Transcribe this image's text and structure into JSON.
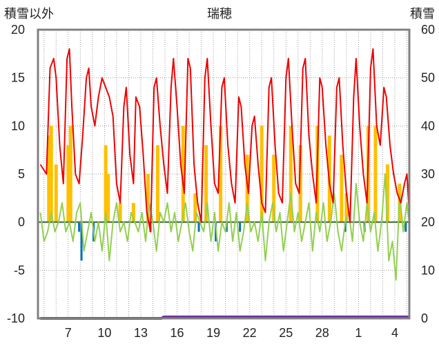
{
  "chart_data": {
    "type": "line",
    "title": "瑞穂",
    "y_left_label": "積雪以外",
    "y_right_label": "積雪",
    "y_left_ticks": [
      "20",
      "15",
      "10",
      "5",
      "0",
      "-5",
      "-10"
    ],
    "y_right_ticks": [
      "60",
      "50",
      "40",
      "30",
      "20",
      "10",
      "0"
    ],
    "ylim_left": [
      -10,
      20
    ],
    "ylim_right": [
      0,
      60
    ],
    "x_tick_labels": [
      "7",
      "10",
      "13",
      "16",
      "19",
      "22",
      "25",
      "28",
      "1",
      "4"
    ],
    "x_tick_days": [
      3,
      6,
      9,
      12,
      15,
      18,
      21,
      24,
      27,
      30
    ],
    "x_range_days": [
      0.5,
      31.2
    ],
    "grid": true,
    "colors": {
      "temperature": "#ee0000",
      "sunshine": "#ffc000",
      "temp_diff": "#92d050",
      "precip": "#0070c0",
      "snow": "#7030a0",
      "zero_line": "#5a7a5a",
      "frame": "#808080"
    },
    "series": [
      {
        "key": "temperature",
        "axis": "left",
        "points": [
          [
            0.7,
            6
          ],
          [
            1.2,
            5
          ],
          [
            1.5,
            16
          ],
          [
            1.8,
            17
          ],
          [
            2.0,
            15
          ],
          [
            2.3,
            8
          ],
          [
            2.6,
            4
          ],
          [
            2.9,
            17
          ],
          [
            3.1,
            18
          ],
          [
            3.3,
            12
          ],
          [
            3.6,
            5
          ],
          [
            3.9,
            4
          ],
          [
            4.2,
            9
          ],
          [
            4.5,
            15
          ],
          [
            4.7,
            16
          ],
          [
            4.9,
            12
          ],
          [
            5.2,
            10
          ],
          [
            5.5,
            13
          ],
          [
            5.8,
            15
          ],
          [
            6.1,
            14
          ],
          [
            6.4,
            13
          ],
          [
            6.7,
            11
          ],
          [
            7.0,
            4
          ],
          [
            7.3,
            2
          ],
          [
            7.6,
            12
          ],
          [
            7.8,
            14
          ],
          [
            8.1,
            7
          ],
          [
            8.4,
            4
          ],
          [
            8.6,
            13
          ],
          [
            8.9,
            12
          ],
          [
            9.2,
            7
          ],
          [
            9.5,
            1
          ],
          [
            9.8,
            -1
          ],
          [
            10.1,
            14
          ],
          [
            10.3,
            15
          ],
          [
            10.6,
            10
          ],
          [
            10.9,
            6
          ],
          [
            11.2,
            3
          ],
          [
            11.5,
            14
          ],
          [
            11.7,
            17
          ],
          [
            12.0,
            12
          ],
          [
            12.3,
            6
          ],
          [
            12.6,
            3
          ],
          [
            12.9,
            17
          ],
          [
            13.1,
            16
          ],
          [
            13.4,
            6
          ],
          [
            13.7,
            2
          ],
          [
            14.0,
            0
          ],
          [
            14.3,
            15
          ],
          [
            14.5,
            17
          ],
          [
            14.8,
            10
          ],
          [
            15.1,
            4
          ],
          [
            15.4,
            3
          ],
          [
            15.7,
            14
          ],
          [
            15.9,
            15
          ],
          [
            16.2,
            8
          ],
          [
            16.5,
            4
          ],
          [
            16.8,
            2
          ],
          [
            17.1,
            13
          ],
          [
            17.3,
            12
          ],
          [
            17.6,
            6
          ],
          [
            17.9,
            3
          ],
          [
            18.2,
            10
          ],
          [
            18.4,
            11
          ],
          [
            18.7,
            6
          ],
          [
            19.0,
            2
          ],
          [
            19.3,
            1
          ],
          [
            19.6,
            14
          ],
          [
            19.8,
            15
          ],
          [
            20.1,
            8
          ],
          [
            20.4,
            3
          ],
          [
            20.7,
            2
          ],
          [
            21.0,
            15
          ],
          [
            21.2,
            17
          ],
          [
            21.5,
            10
          ],
          [
            21.8,
            4
          ],
          [
            22.1,
            3
          ],
          [
            22.4,
            16
          ],
          [
            22.6,
            17
          ],
          [
            22.9,
            9
          ],
          [
            23.2,
            5
          ],
          [
            23.5,
            2
          ],
          [
            23.8,
            15
          ],
          [
            24.0,
            14
          ],
          [
            24.3,
            8
          ],
          [
            24.6,
            4
          ],
          [
            24.9,
            2
          ],
          [
            25.2,
            14
          ],
          [
            25.4,
            15
          ],
          [
            25.7,
            8
          ],
          [
            26.0,
            3
          ],
          [
            26.3,
            0
          ],
          [
            26.6,
            13
          ],
          [
            26.8,
            17
          ],
          [
            27.1,
            10
          ],
          [
            27.4,
            5
          ],
          [
            27.7,
            2
          ],
          [
            28.0,
            16
          ],
          [
            28.2,
            18
          ],
          [
            28.5,
            10
          ],
          [
            28.8,
            8
          ],
          [
            29.1,
            14
          ],
          [
            29.3,
            13
          ],
          [
            29.6,
            8
          ],
          [
            29.9,
            5
          ],
          [
            30.2,
            3
          ],
          [
            30.5,
            2
          ],
          [
            30.8,
            4
          ],
          [
            31.0,
            5
          ],
          [
            31.2,
            1
          ]
        ]
      },
      {
        "key": "sunshine",
        "axis": "left",
        "bars": [
          [
            1.4,
            9
          ],
          [
            1.6,
            10
          ],
          [
            2.0,
            6
          ],
          [
            3.0,
            8
          ],
          [
            3.2,
            10
          ],
          [
            6.1,
            8
          ],
          [
            6.3,
            5
          ],
          [
            7.3,
            2
          ],
          [
            8.4,
            2
          ],
          [
            9.6,
            5
          ],
          [
            10.4,
            8
          ],
          [
            12.5,
            10
          ],
          [
            13.5,
            3
          ],
          [
            14.4,
            8
          ],
          [
            15.6,
            10
          ],
          [
            17.8,
            7
          ],
          [
            19.0,
            10
          ],
          [
            20.0,
            7
          ],
          [
            21.4,
            10
          ],
          [
            22.2,
            8
          ],
          [
            23.6,
            10
          ],
          [
            24.6,
            9
          ],
          [
            25.6,
            7
          ],
          [
            26.0,
            3
          ],
          [
            27.8,
            10
          ],
          [
            28.4,
            10
          ],
          [
            29.4,
            6
          ],
          [
            30.4,
            4
          ]
        ]
      },
      {
        "key": "temp_diff",
        "axis": "left",
        "points": [
          [
            0.7,
            1
          ],
          [
            1.0,
            -2
          ],
          [
            1.3,
            -1
          ],
          [
            1.6,
            1
          ],
          [
            1.9,
            -1
          ],
          [
            2.2,
            0
          ],
          [
            2.5,
            2
          ],
          [
            2.8,
            -1
          ],
          [
            3.1,
            0
          ],
          [
            3.4,
            -2
          ],
          [
            3.7,
            1
          ],
          [
            4.0,
            2
          ],
          [
            4.3,
            -3
          ],
          [
            4.6,
            -1
          ],
          [
            4.9,
            1
          ],
          [
            5.2,
            -2
          ],
          [
            5.5,
            0
          ],
          [
            5.8,
            -3
          ],
          [
            6.1,
            1
          ],
          [
            6.4,
            -4
          ],
          [
            6.7,
            0
          ],
          [
            7.0,
            2
          ],
          [
            7.3,
            -1
          ],
          [
            7.6,
            0
          ],
          [
            7.9,
            -2
          ],
          [
            8.2,
            1
          ],
          [
            8.5,
            0
          ],
          [
            8.8,
            -1
          ],
          [
            9.1,
            1
          ],
          [
            9.4,
            -2
          ],
          [
            9.7,
            2
          ],
          [
            10.0,
            0
          ],
          [
            10.3,
            -3
          ],
          [
            10.6,
            1
          ],
          [
            10.9,
            0
          ],
          [
            11.2,
            2
          ],
          [
            11.5,
            -1
          ],
          [
            11.8,
            1
          ],
          [
            12.1,
            -2
          ],
          [
            12.4,
            0
          ],
          [
            12.7,
            2
          ],
          [
            13.0,
            -1
          ],
          [
            13.3,
            -3
          ],
          [
            13.6,
            1
          ],
          [
            13.9,
            0
          ],
          [
            14.2,
            -1
          ],
          [
            14.5,
            2
          ],
          [
            14.8,
            -2
          ],
          [
            15.1,
            1
          ],
          [
            15.4,
            -3
          ],
          [
            15.7,
            0
          ],
          [
            16.0,
            -1
          ],
          [
            16.3,
            2
          ],
          [
            16.6,
            -2
          ],
          [
            16.9,
            1
          ],
          [
            17.2,
            -3
          ],
          [
            17.5,
            -1
          ],
          [
            17.8,
            2
          ],
          [
            18.1,
            -1
          ],
          [
            18.4,
            0
          ],
          [
            18.7,
            -2
          ],
          [
            19.0,
            1
          ],
          [
            19.3,
            -4
          ],
          [
            19.6,
            0
          ],
          [
            19.9,
            2
          ],
          [
            20.2,
            -1
          ],
          [
            20.5,
            1
          ],
          [
            20.8,
            -3
          ],
          [
            21.1,
            0
          ],
          [
            21.4,
            3
          ],
          [
            21.7,
            -1
          ],
          [
            22.0,
            1
          ],
          [
            22.3,
            -2
          ],
          [
            22.6,
            0
          ],
          [
            22.9,
            2
          ],
          [
            23.2,
            -3
          ],
          [
            23.5,
            1
          ],
          [
            23.8,
            -1
          ],
          [
            24.1,
            2
          ],
          [
            24.4,
            -2
          ],
          [
            24.7,
            0
          ],
          [
            25.0,
            3
          ],
          [
            25.3,
            -1
          ],
          [
            25.6,
            -3
          ],
          [
            25.9,
            0
          ],
          [
            26.2,
            1
          ],
          [
            26.5,
            -2
          ],
          [
            26.8,
            4
          ],
          [
            27.1,
            0
          ],
          [
            27.4,
            -2
          ],
          [
            27.7,
            2
          ],
          [
            28.0,
            -1
          ],
          [
            28.3,
            1
          ],
          [
            28.6,
            -3
          ],
          [
            28.9,
            0
          ],
          [
            29.2,
            5
          ],
          [
            29.5,
            -4
          ],
          [
            29.8,
            -2
          ],
          [
            30.1,
            -6
          ],
          [
            30.4,
            3
          ],
          [
            30.7,
            -1
          ],
          [
            31.0,
            2
          ],
          [
            31.2,
            0
          ]
        ]
      },
      {
        "key": "precip",
        "axis": "left",
        "bars": [
          [
            3.9,
            -1
          ],
          [
            4.1,
            -4
          ],
          [
            5.1,
            -2
          ],
          [
            9.8,
            -1
          ],
          [
            13.8,
            -1
          ],
          [
            15.2,
            -2
          ],
          [
            16.1,
            -1
          ],
          [
            17.2,
            -1
          ],
          [
            25.9,
            -1
          ],
          [
            27.5,
            -1
          ],
          [
            30.9,
            -1
          ]
        ]
      },
      {
        "key": "snow",
        "axis": "right",
        "points": [
          [
            0.7,
            0
          ],
          [
            10.7,
            0
          ],
          [
            10.9,
            0.3
          ],
          [
            31.2,
            0.3
          ]
        ]
      }
    ]
  }
}
